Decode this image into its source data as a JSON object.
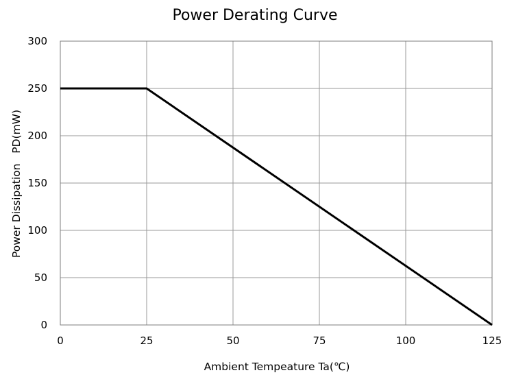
{
  "chart_data": {
    "type": "line",
    "title": "Power Derating Curve",
    "xlabel": "Ambient Tempeature Ta(℃)",
    "ylabel": "Power Dissipation   PD(mW)",
    "xlim": [
      0,
      125
    ],
    "ylim": [
      0,
      300
    ],
    "x_ticks": [
      0,
      25,
      50,
      75,
      100,
      125
    ],
    "y_ticks": [
      0,
      50,
      100,
      150,
      200,
      250,
      300
    ],
    "x_tick_labels": [
      "0",
      "25",
      "50",
      "75",
      "100",
      "125"
    ],
    "y_tick_labels": [
      "0",
      "50",
      "100",
      "150",
      "200",
      "250",
      "300"
    ],
    "grid": true,
    "series": [
      {
        "x": [
          0,
          25,
          125
        ],
        "y": [
          250,
          250,
          0
        ],
        "color": "#000000"
      }
    ]
  }
}
